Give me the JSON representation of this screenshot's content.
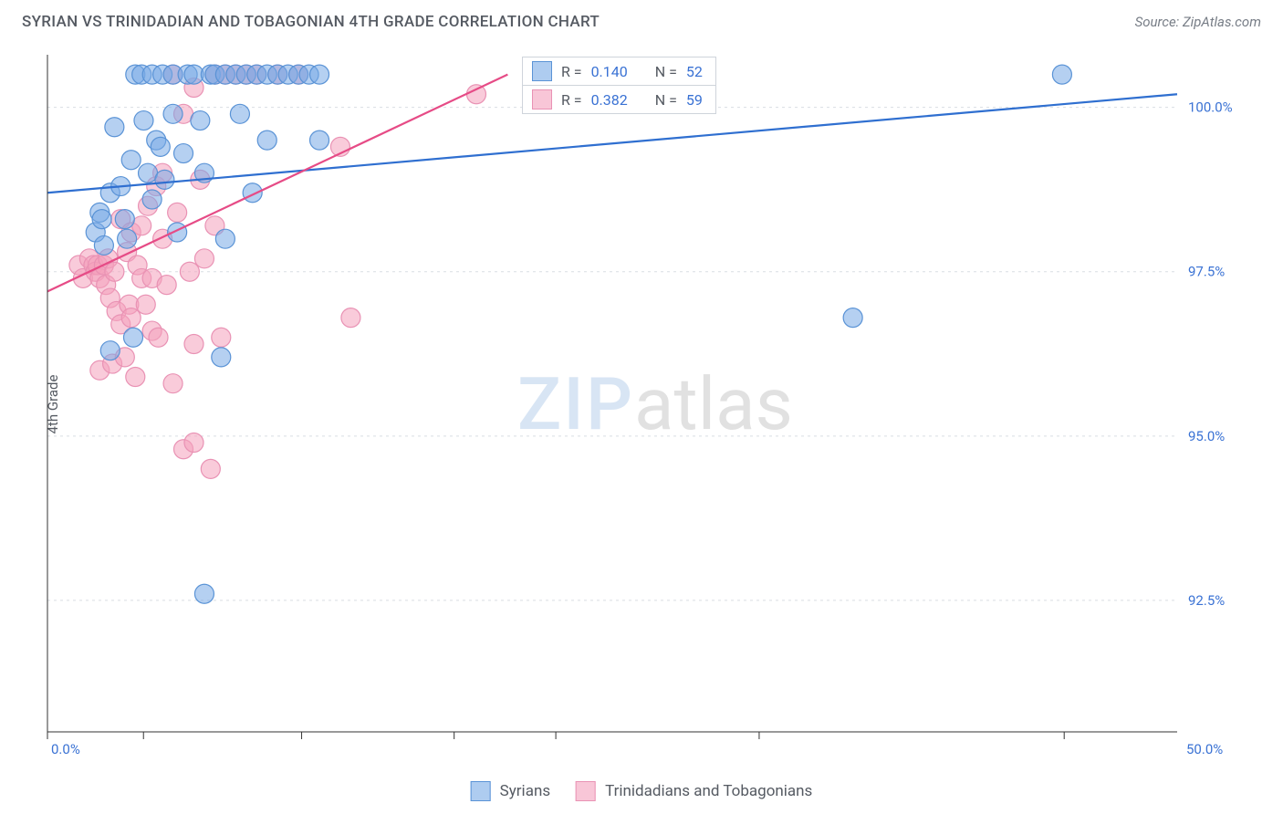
{
  "title": "SYRIAN VS TRINIDADIAN AND TOBAGONIAN 4TH GRADE CORRELATION CHART",
  "source": "Source: ZipAtlas.com",
  "ylabel": "4th Grade",
  "watermark_zip": "ZIP",
  "watermark_atlas": "atlas",
  "chart": {
    "type": "scatter",
    "background_color": "#ffffff",
    "grid_color": "#d9dde3",
    "axis_color": "#333333",
    "marker_radius": 10.5,
    "xlim": [
      -2,
      52
    ],
    "ylim": [
      90.5,
      100.8
    ],
    "yticks": [
      {
        "v": 100.0,
        "label": "100.0%"
      },
      {
        "v": 97.5,
        "label": "97.5%"
      },
      {
        "v": 95.0,
        "label": "95.0%"
      },
      {
        "v": 92.5,
        "label": "92.5%"
      }
    ],
    "xaxis_labels": {
      "left": "0.0%",
      "right": "50.0%"
    },
    "xtick_positions_pct": [
      0,
      8.5,
      22.5,
      36,
      45,
      63,
      90
    ],
    "series_blue": {
      "name": "Syrians",
      "color_fill": "rgba(120,170,230,0.55)",
      "color_stroke": "#5a93d6",
      "R": "0.140",
      "N": "52",
      "trend": {
        "x1": -2,
        "y1": 98.7,
        "x2": 52,
        "y2": 100.2
      },
      "points": [
        [
          0.3,
          98.1
        ],
        [
          0.5,
          98.4
        ],
        [
          0.6,
          98.3
        ],
        [
          0.7,
          97.9
        ],
        [
          1.0,
          98.7
        ],
        [
          1.0,
          96.3
        ],
        [
          1.2,
          99.7
        ],
        [
          1.5,
          98.8
        ],
        [
          1.7,
          98.3
        ],
        [
          1.8,
          98.0
        ],
        [
          2.0,
          99.2
        ],
        [
          2.1,
          96.5
        ],
        [
          2.2,
          100.5
        ],
        [
          2.5,
          100.5
        ],
        [
          2.6,
          99.8
        ],
        [
          2.8,
          99.0
        ],
        [
          3.0,
          100.5
        ],
        [
          3.0,
          98.6
        ],
        [
          3.2,
          99.5
        ],
        [
          3.4,
          99.4
        ],
        [
          3.5,
          100.5
        ],
        [
          3.6,
          98.9
        ],
        [
          4.0,
          99.9
        ],
        [
          4.0,
          100.5
        ],
        [
          4.2,
          98.1
        ],
        [
          4.5,
          99.3
        ],
        [
          4.7,
          100.5
        ],
        [
          5.0,
          100.5
        ],
        [
          5.3,
          99.8
        ],
        [
          5.5,
          99.0
        ],
        [
          5.5,
          92.6
        ],
        [
          5.8,
          100.5
        ],
        [
          6.0,
          100.5
        ],
        [
          6.3,
          96.2
        ],
        [
          6.5,
          98.0
        ],
        [
          6.5,
          100.5
        ],
        [
          7.0,
          100.5
        ],
        [
          7.2,
          99.9
        ],
        [
          7.5,
          100.5
        ],
        [
          7.8,
          98.7
        ],
        [
          8.0,
          100.5
        ],
        [
          8.5,
          99.5
        ],
        [
          8.5,
          100.5
        ],
        [
          9.0,
          100.5
        ],
        [
          9.5,
          100.5
        ],
        [
          10.0,
          100.5
        ],
        [
          10.5,
          100.5
        ],
        [
          11.0,
          100.5
        ],
        [
          11.0,
          99.5
        ],
        [
          26.5,
          100.5
        ],
        [
          36.5,
          96.8
        ],
        [
          46.5,
          100.5
        ]
      ]
    },
    "series_pink": {
      "name": "Trinidadians and Tobagonians",
      "color_fill": "rgba(244,160,188,0.55)",
      "color_stroke": "#e992b4",
      "R": "0.382",
      "N": "59",
      "trend": {
        "x1": -2,
        "y1": 97.2,
        "x2": 20,
        "y2": 100.5
      },
      "points": [
        [
          -0.5,
          97.6
        ],
        [
          -0.3,
          97.4
        ],
        [
          0.0,
          97.7
        ],
        [
          0.2,
          97.6
        ],
        [
          0.3,
          97.5
        ],
        [
          0.4,
          97.6
        ],
        [
          0.5,
          97.4
        ],
        [
          0.5,
          96.0
        ],
        [
          0.7,
          97.6
        ],
        [
          0.8,
          97.3
        ],
        [
          0.9,
          97.7
        ],
        [
          1.0,
          97.1
        ],
        [
          1.1,
          96.1
        ],
        [
          1.2,
          97.5
        ],
        [
          1.3,
          96.9
        ],
        [
          1.5,
          96.7
        ],
        [
          1.5,
          98.3
        ],
        [
          1.7,
          96.2
        ],
        [
          1.8,
          97.8
        ],
        [
          1.9,
          97.0
        ],
        [
          2.0,
          96.8
        ],
        [
          2.0,
          98.1
        ],
        [
          2.2,
          95.9
        ],
        [
          2.3,
          97.6
        ],
        [
          2.5,
          98.2
        ],
        [
          2.5,
          97.4
        ],
        [
          2.7,
          97.0
        ],
        [
          2.8,
          98.5
        ],
        [
          3.0,
          96.6
        ],
        [
          3.0,
          97.4
        ],
        [
          3.2,
          98.8
        ],
        [
          3.3,
          96.5
        ],
        [
          3.5,
          98.0
        ],
        [
          3.5,
          99.0
        ],
        [
          3.7,
          97.3
        ],
        [
          4.0,
          95.8
        ],
        [
          4.0,
          100.5
        ],
        [
          4.2,
          98.4
        ],
        [
          4.5,
          94.8
        ],
        [
          4.5,
          99.9
        ],
        [
          4.8,
          97.5
        ],
        [
          5.0,
          96.4
        ],
        [
          5.0,
          100.3
        ],
        [
          5.0,
          94.9
        ],
        [
          5.3,
          98.9
        ],
        [
          5.5,
          97.7
        ],
        [
          5.8,
          94.5
        ],
        [
          6.0,
          100.5
        ],
        [
          6.0,
          98.2
        ],
        [
          6.3,
          96.5
        ],
        [
          6.5,
          100.5
        ],
        [
          7.0,
          100.5
        ],
        [
          7.5,
          100.5
        ],
        [
          8.0,
          100.5
        ],
        [
          9.0,
          100.5
        ],
        [
          10.0,
          100.5
        ],
        [
          12.0,
          99.4
        ],
        [
          12.5,
          96.8
        ],
        [
          18.5,
          100.2
        ]
      ]
    }
  },
  "bottom_legend": {
    "blue": "Syrians",
    "pink": "Trinidadians and Tobagonians"
  },
  "stats_legend": {
    "prefix_R": "R =",
    "prefix_N": "N ="
  }
}
